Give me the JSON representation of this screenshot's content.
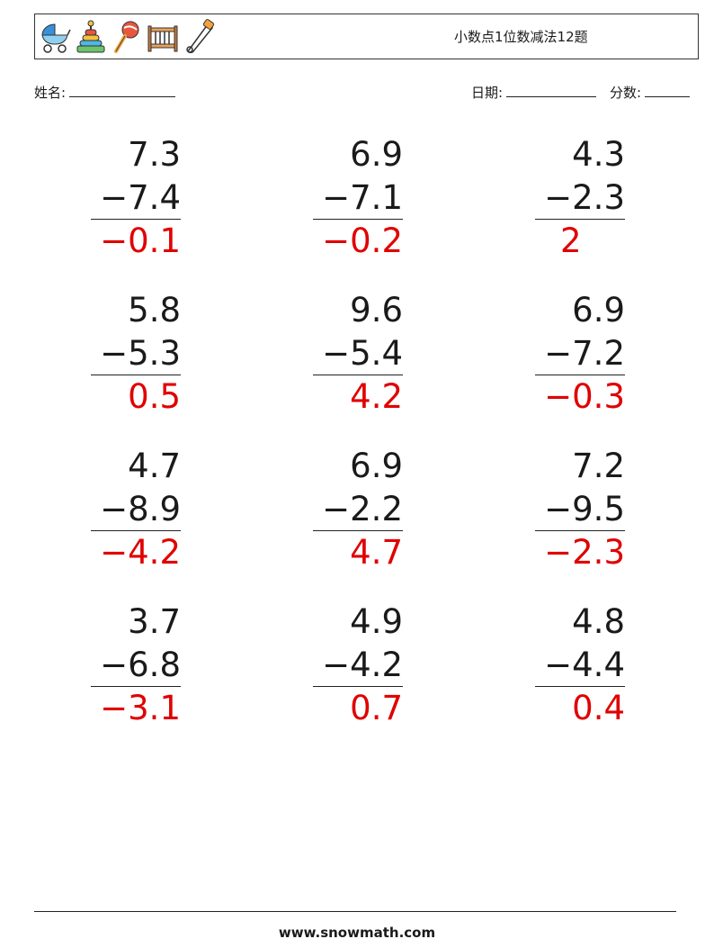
{
  "header": {
    "title": "小数点1位数减法12题",
    "icons": [
      "baby-carriage-icon",
      "stacking-rings-toy-icon",
      "rattle-icon",
      "crib-icon",
      "safety-pin-icon"
    ]
  },
  "fields": {
    "name_label": "姓名:",
    "date_label": "日期:",
    "score_label": "分数:"
  },
  "problems": [
    {
      "top": "7.3",
      "sub": "−7.4",
      "answer": "−0.1"
    },
    {
      "top": "6.9",
      "sub": "−7.1",
      "answer": "−0.2"
    },
    {
      "top": "4.3",
      "sub": "−2.3",
      "answer": "2"
    },
    {
      "top": "5.8",
      "sub": "−5.3",
      "answer": "0.5"
    },
    {
      "top": "9.6",
      "sub": "−5.4",
      "answer": "4.2"
    },
    {
      "top": "6.9",
      "sub": "−7.2",
      "answer": "−0.3"
    },
    {
      "top": "4.7",
      "sub": "−8.9",
      "answer": "−4.2"
    },
    {
      "top": "6.9",
      "sub": "−2.2",
      "answer": "4.7"
    },
    {
      "top": "7.2",
      "sub": "−9.5",
      "answer": "−2.3"
    },
    {
      "top": "3.7",
      "sub": "−6.8",
      "answer": "−3.1"
    },
    {
      "top": "4.9",
      "sub": "−4.2",
      "answer": "0.7"
    },
    {
      "top": "4.8",
      "sub": "−4.4",
      "answer": "0.4"
    }
  ],
  "footer": {
    "site": "www.snowmath.com"
  }
}
